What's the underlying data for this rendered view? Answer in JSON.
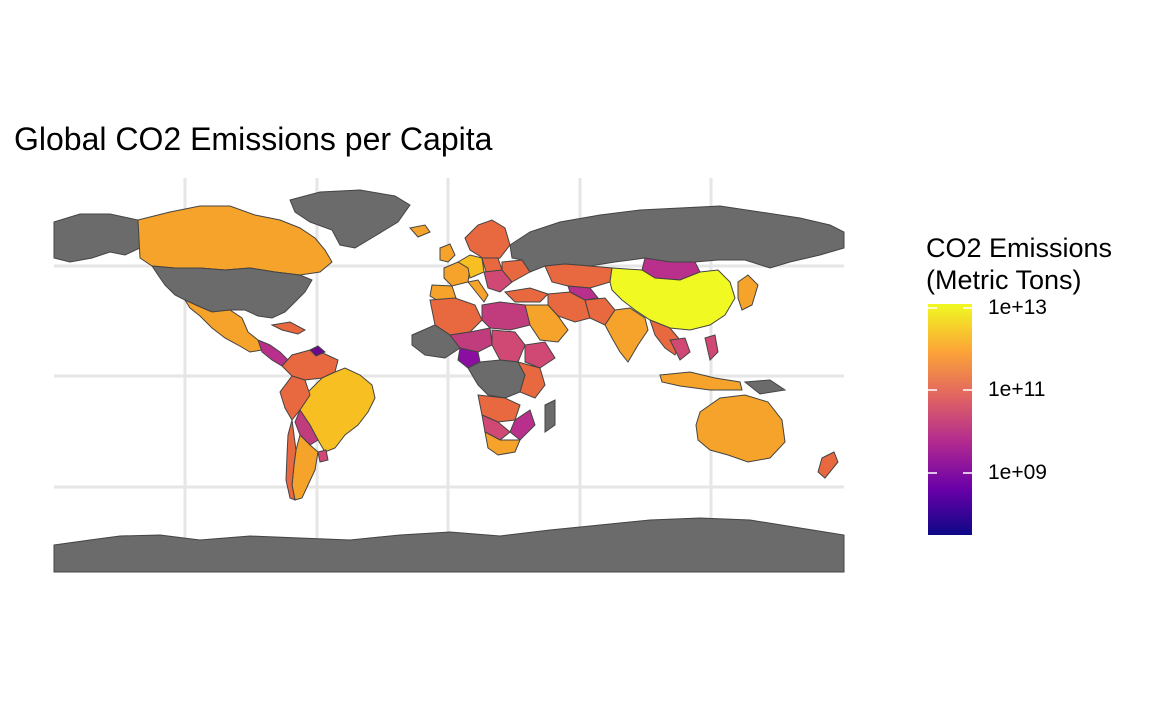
{
  "map": {
    "title": "Global CO2 Emissions per Capita",
    "legend": {
      "title_line1": "CO2 Emissions",
      "title_line2": "(Metric Tons)",
      "ticks": [
        "1e+13",
        "1e+11",
        "1e+09"
      ],
      "scale": "log10",
      "palette": "plasma",
      "colors": [
        "#0d0887",
        "#6a00a8",
        "#b12a90",
        "#e16462",
        "#fca636",
        "#f0f921"
      ]
    },
    "no_data_color": "#6b6b6b",
    "gridlines": true
  }
}
